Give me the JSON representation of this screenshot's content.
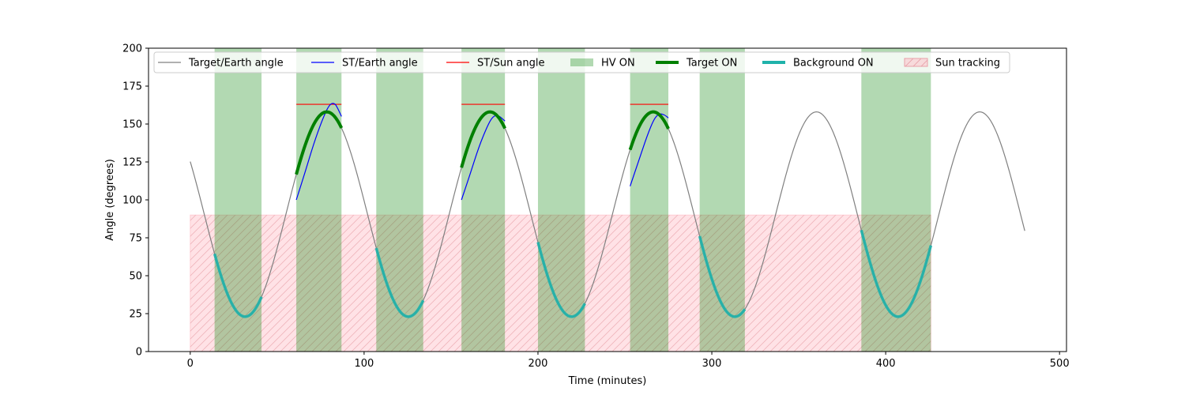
{
  "chart_data": {
    "type": "line",
    "title": "",
    "xlabel": "Time (minutes)",
    "ylabel": "Angle (degrees)",
    "xlim": [
      -24,
      504
    ],
    "ylim": [
      0,
      200
    ],
    "x_ticks": [
      0,
      100,
      200,
      300,
      400,
      500
    ],
    "y_ticks": [
      0,
      25,
      50,
      75,
      100,
      125,
      150,
      175,
      200
    ],
    "grid": false,
    "legend_position": "top",
    "legend": [
      {
        "key": "target_earth",
        "label": "Target/Earth angle",
        "kind": "line",
        "color": "#808080"
      },
      {
        "key": "st_earth",
        "label": "ST/Earth angle",
        "kind": "line",
        "color": "#0000ff"
      },
      {
        "key": "st_sun",
        "label": "ST/Sun angle",
        "kind": "line",
        "color": "#ff0000"
      },
      {
        "key": "hv_on",
        "label": "HV ON",
        "kind": "patch",
        "color": "#008000"
      },
      {
        "key": "target_on",
        "label": "Target ON",
        "kind": "thickline",
        "color": "#008000"
      },
      {
        "key": "background_on",
        "label": "Background ON",
        "kind": "thickline",
        "color": "#20b2aa"
      },
      {
        "key": "sun_tracking",
        "label": "Sun tracking",
        "kind": "hatch",
        "color": "#ffb6c1"
      }
    ],
    "target_earth_angle": {
      "name": "Target/Earth angle",
      "color": "#808080",
      "model": {
        "mean": 90.5,
        "amplitude": 67.5,
        "period_minutes": 93.9,
        "peak_time_minutes": 78.5
      },
      "x_range": [
        0,
        480
      ]
    },
    "hv_on_periods": [
      [
        14,
        41
      ],
      [
        61,
        87
      ],
      [
        107,
        134
      ],
      [
        156,
        181
      ],
      [
        200,
        227
      ],
      [
        253,
        275
      ],
      [
        293,
        319
      ],
      [
        386,
        426
      ]
    ],
    "target_on_periods": [
      [
        61,
        87
      ],
      [
        156,
        181
      ],
      [
        253,
        275
      ]
    ],
    "background_on_periods": [
      [
        14,
        41
      ],
      [
        107,
        134
      ],
      [
        200,
        227
      ],
      [
        293,
        319
      ],
      [
        386,
        426
      ]
    ],
    "st_earth_angle": {
      "name": "ST/Earth angle",
      "color": "#0000ff",
      "segments": [
        {
          "x": [
            61,
            66,
            71,
            76,
            80,
            83,
            85,
            87
          ],
          "y": [
            100,
            118,
            137,
            153,
            163,
            164,
            160,
            155
          ]
        },
        {
          "x": [
            156,
            161,
            166,
            171,
            174,
            177,
            181
          ],
          "y": [
            100,
            117,
            135,
            149,
            155,
            156,
            152
          ]
        },
        {
          "x": [
            253,
            258,
            263,
            267,
            270,
            273,
            275
          ],
          "y": [
            109,
            126,
            143,
            154,
            157,
            156,
            154
          ]
        }
      ]
    },
    "st_sun_angle": {
      "name": "ST/Sun angle",
      "color": "#ff0000",
      "segments": [
        {
          "x": [
            61,
            87
          ],
          "y": [
            163,
            163
          ]
        },
        {
          "x": [
            156,
            181
          ],
          "y": [
            163,
            163
          ]
        },
        {
          "x": [
            253,
            275
          ],
          "y": [
            163,
            163
          ]
        }
      ]
    },
    "sun_tracking": {
      "name": "Sun tracking",
      "color": "#ffb6c1",
      "x_range": [
        0,
        426
      ],
      "y_range": [
        0,
        90
      ]
    }
  }
}
